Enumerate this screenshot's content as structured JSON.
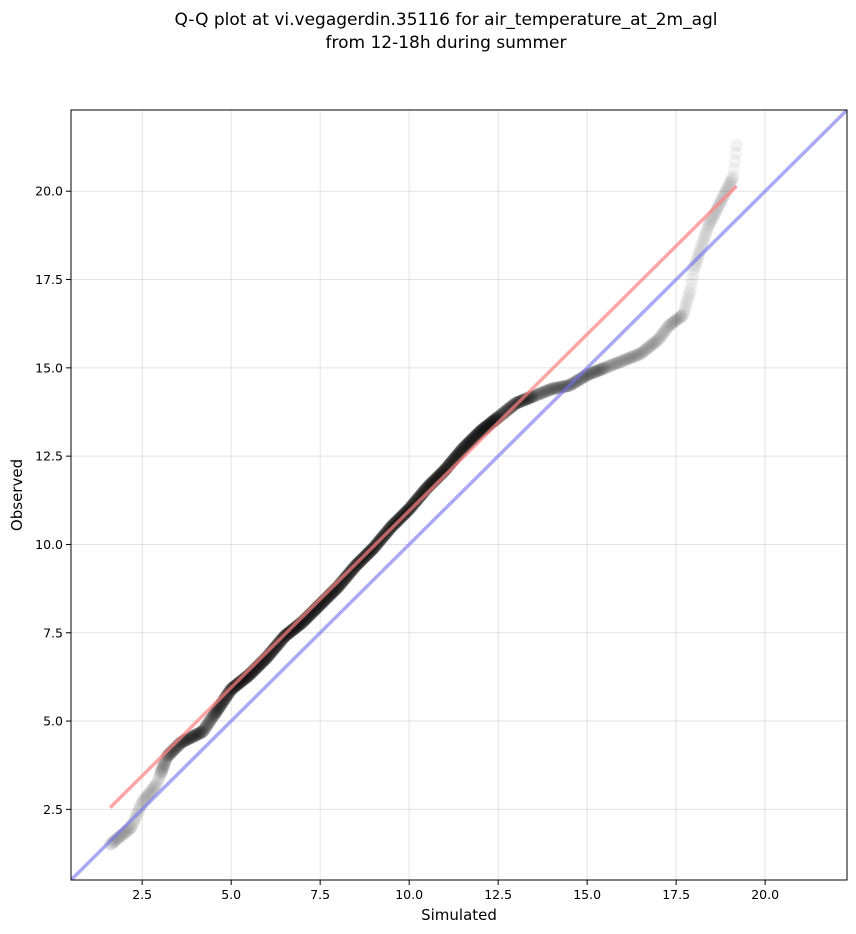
{
  "chart_data": {
    "type": "scatter",
    "title": [
      "Q-Q plot at vi.vegagerdin.35116 for air_temperature_at_2m_agl",
      "from 12-18h during summer"
    ],
    "xlabel": "Simulated",
    "ylabel": "Observed",
    "xlim": [
      0.5,
      22.3
    ],
    "ylim": [
      0.5,
      22.3
    ],
    "xticks": [
      2.5,
      5.0,
      7.5,
      10.0,
      12.5,
      15.0,
      17.5,
      20.0
    ],
    "yticks": [
      2.5,
      5.0,
      7.5,
      10.0,
      12.5,
      15.0,
      17.5,
      20.0
    ],
    "grid": true,
    "colors": {
      "points": "#000000",
      "fit_line": "#ff8080",
      "identity_line": "#6f6fef"
    },
    "quantile_anchors": {
      "x": [
        1.6,
        2.2,
        2.5,
        2.9,
        3.2,
        3.6,
        4.2,
        4.6,
        5.0,
        5.5,
        6.0,
        6.5,
        7.0,
        7.5,
        8.0,
        8.5,
        9.0,
        9.5,
        10.0,
        10.5,
        11.0,
        11.5,
        12.0,
        12.5,
        13.0,
        13.5,
        14.0,
        14.5,
        15.0,
        15.5,
        16.0,
        16.5,
        17.0,
        17.3,
        17.7,
        17.9,
        18.0,
        18.4,
        19.1,
        19.2
      ],
      "y": [
        1.5,
        2.0,
        2.7,
        3.2,
        4.0,
        4.4,
        4.7,
        5.3,
        5.9,
        6.3,
        6.8,
        7.4,
        7.8,
        8.3,
        8.8,
        9.4,
        9.9,
        10.5,
        11.0,
        11.6,
        12.1,
        12.7,
        13.2,
        13.6,
        14.0,
        14.2,
        14.4,
        14.5,
        14.8,
        15.0,
        15.2,
        15.4,
        15.8,
        16.2,
        16.5,
        17.2,
        17.8,
        19.0,
        20.4,
        21.3
      ]
    },
    "fit_line": {
      "x": [
        1.6,
        19.2
      ],
      "y": [
        2.55,
        20.15
      ]
    },
    "identity_line": {
      "x": [
        0.5,
        22.3
      ],
      "y": [
        0.5,
        22.3
      ]
    }
  }
}
